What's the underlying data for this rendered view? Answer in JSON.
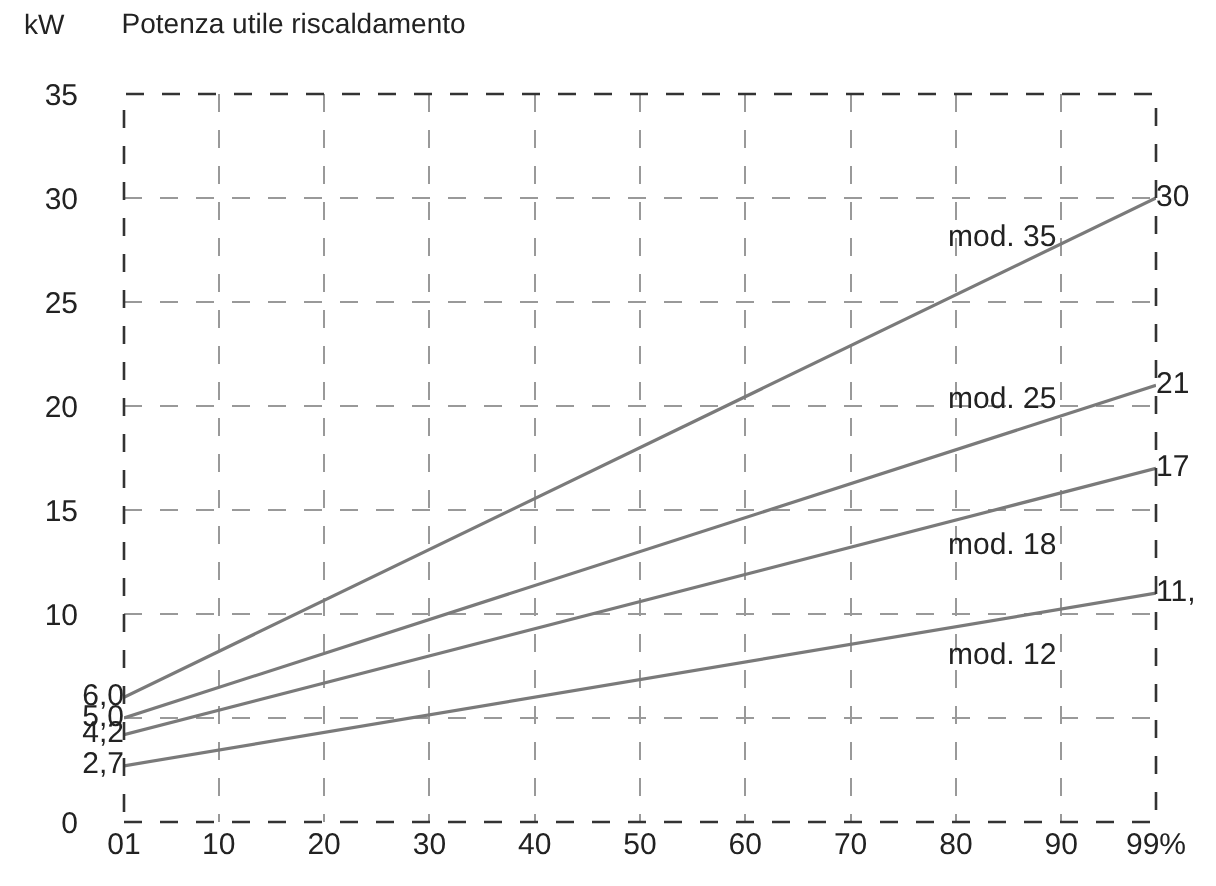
{
  "chart_data": {
    "type": "line",
    "title": "Potenza utile riscaldamento",
    "ylabel": "kW",
    "x": [
      1,
      99
    ],
    "series": [
      {
        "name": "mod. 35",
        "color": "#7a7a7a",
        "values": [
          6.0,
          30
        ],
        "value_labels": [
          "6,0",
          "30"
        ]
      },
      {
        "name": "mod. 25",
        "color": "#7a7a7a",
        "values": [
          5.0,
          21
        ],
        "value_labels": [
          "5,0",
          "21"
        ]
      },
      {
        "name": "mod. 18",
        "color": "#7a7a7a",
        "values": [
          4.2,
          17
        ],
        "value_labels": [
          "4,2",
          "17"
        ]
      },
      {
        "name": "mod. 12",
        "color": "#7a7a7a",
        "values": [
          2.7,
          11
        ],
        "value_labels": [
          "2,7",
          "11,"
        ]
      }
    ],
    "xlim": [
      1,
      99
    ],
    "xticks": [
      {
        "value": 1,
        "label": "01"
      },
      10,
      20,
      30,
      40,
      50,
      60,
      70,
      80,
      90,
      {
        "value": 99,
        "label": "99%"
      }
    ],
    "ylim": [
      0,
      35
    ],
    "yticks": [
      0,
      {
        "value": 5,
        "label": null
      },
      10,
      15,
      20,
      25,
      30,
      35
    ],
    "grid": true,
    "legend": false,
    "marker": "none",
    "line_style": "solid"
  }
}
